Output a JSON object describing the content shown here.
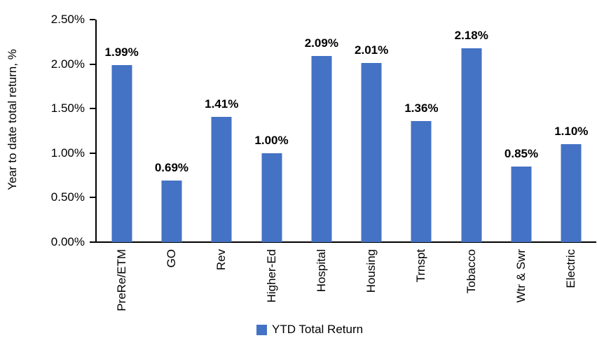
{
  "chart_data": {
    "type": "bar",
    "title": "",
    "categories": [
      "PreRe/ETM",
      "GO",
      "Rev",
      "Higher-Ed",
      "Hospital",
      "Housing",
      "Trnspt",
      "Tobacco",
      "Wtr & Swr",
      "Electric"
    ],
    "values": [
      1.99,
      0.69,
      1.41,
      1.0,
      2.09,
      2.01,
      1.36,
      2.18,
      0.85,
      1.1
    ],
    "data_labels": [
      "1.99%",
      "0.69%",
      "1.41%",
      "1.00%",
      "2.09%",
      "2.01%",
      "1.36%",
      "2.18%",
      "0.85%",
      "1.10%"
    ],
    "xlabel": "",
    "ylabel": "Year to date total return, %",
    "ylim": [
      0,
      2.5
    ],
    "y_ticks": [
      "0.00%",
      "0.50%",
      "1.00%",
      "1.50%",
      "2.00%",
      "2.50%"
    ],
    "grid": false,
    "legend": {
      "position": "bottom",
      "entries": [
        "YTD Total Return"
      ]
    },
    "colors": {
      "bar": "#4472C4",
      "axis": "#000000",
      "text": "#000000",
      "background": "#FFFFFF"
    }
  }
}
